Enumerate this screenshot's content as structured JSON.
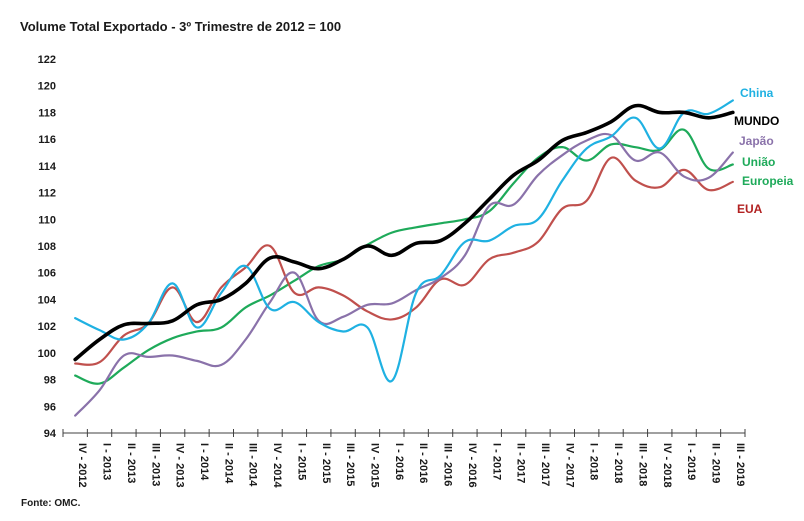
{
  "chart_data": {
    "type": "line",
    "title": "Volume Total Exportado  - 3º Trimestre de 2012 = 100",
    "xlabel": "",
    "ylabel": "",
    "ylim": [
      94,
      122
    ],
    "yticks": [
      94,
      96,
      98,
      100,
      102,
      104,
      106,
      108,
      110,
      112,
      114,
      116,
      118,
      120,
      122
    ],
    "grid": false,
    "legend": "right, inline labels at line ends",
    "categories": [
      "IV - 2012",
      "I - 2013",
      "II - 2013",
      "III - 2013",
      "IV - 2013",
      "I - 2014",
      "II - 2014",
      "III - 2014",
      "IV - 2014",
      "I - 2015",
      "II - 2015",
      "III - 2015",
      "IV - 2015",
      "I - 2016",
      "II - 2016",
      "III - 2016",
      "IV - 2016",
      "I - 2017",
      "II - 2017",
      "III - 2017",
      "IV - 2017",
      "I - 2018",
      "II - 2018",
      "III - 2018",
      "IV - 2018",
      "I - 2019",
      "II - 2019",
      "III - 2019"
    ],
    "series": [
      {
        "name": "MUNDO",
        "legend_lines": [
          "MUNDO"
        ],
        "color": "#000000",
        "width": "thick",
        "values": [
          99.5,
          101.0,
          102.1,
          102.2,
          102.4,
          103.6,
          104.0,
          105.2,
          107.1,
          106.8,
          106.3,
          107.0,
          108.0,
          107.3,
          108.2,
          108.4,
          109.7,
          111.5,
          113.3,
          114.4,
          115.9,
          116.5,
          117.3,
          118.5,
          118.0,
          118.0,
          117.6,
          118.0
        ]
      },
      {
        "name": "China",
        "legend_lines": [
          "China"
        ],
        "color": "#1fb1e2",
        "width": "normal",
        "values": [
          102.6,
          101.7,
          101.0,
          102.2,
          105.2,
          101.9,
          104.5,
          106.5,
          103.3,
          103.8,
          102.3,
          101.6,
          101.9,
          97.9,
          104.5,
          105.8,
          108.3,
          108.4,
          109.5,
          110.0,
          112.9,
          115.3,
          116.2,
          117.6,
          115.3,
          118.0,
          117.9,
          118.9
        ]
      },
      {
        "name": "Japão",
        "legend_lines": [
          "Japão"
        ],
        "color": "#8a72aa",
        "width": "normal",
        "values": [
          95.3,
          97.2,
          99.8,
          99.7,
          99.8,
          99.4,
          99.1,
          101.0,
          103.8,
          106.0,
          102.4,
          102.7,
          103.6,
          103.7,
          104.7,
          105.6,
          107.3,
          111.0,
          111.1,
          113.3,
          114.8,
          115.9,
          116.3,
          114.4,
          115.0,
          113.2,
          113.1,
          115.0
        ]
      },
      {
        "name": "União Europeia",
        "legend_lines": [
          "União",
          "Europeia"
        ],
        "color": "#1eaa5a",
        "width": "normal",
        "values": [
          98.3,
          97.7,
          98.9,
          100.2,
          101.1,
          101.6,
          101.9,
          103.4,
          104.3,
          105.4,
          106.5,
          107.0,
          108.1,
          109.0,
          109.4,
          109.7,
          110.0,
          110.6,
          112.7,
          114.6,
          115.4,
          114.4,
          115.6,
          115.4,
          115.2,
          116.7,
          113.8,
          114.1
        ]
      },
      {
        "name": "EUA",
        "legend_lines": [
          "EUA"
        ],
        "color": "#c0504d",
        "width": "normal",
        "label_color": "#b22222",
        "values": [
          99.2,
          99.3,
          101.3,
          102.2,
          104.9,
          102.3,
          104.9,
          106.4,
          108.0,
          104.5,
          104.9,
          104.3,
          103.1,
          102.5,
          103.4,
          105.5,
          105.1,
          107.0,
          107.5,
          108.3,
          110.8,
          111.4,
          114.6,
          112.9,
          112.4,
          113.7,
          112.2,
          112.8
        ]
      }
    ],
    "source": "Fonte: OMC."
  }
}
